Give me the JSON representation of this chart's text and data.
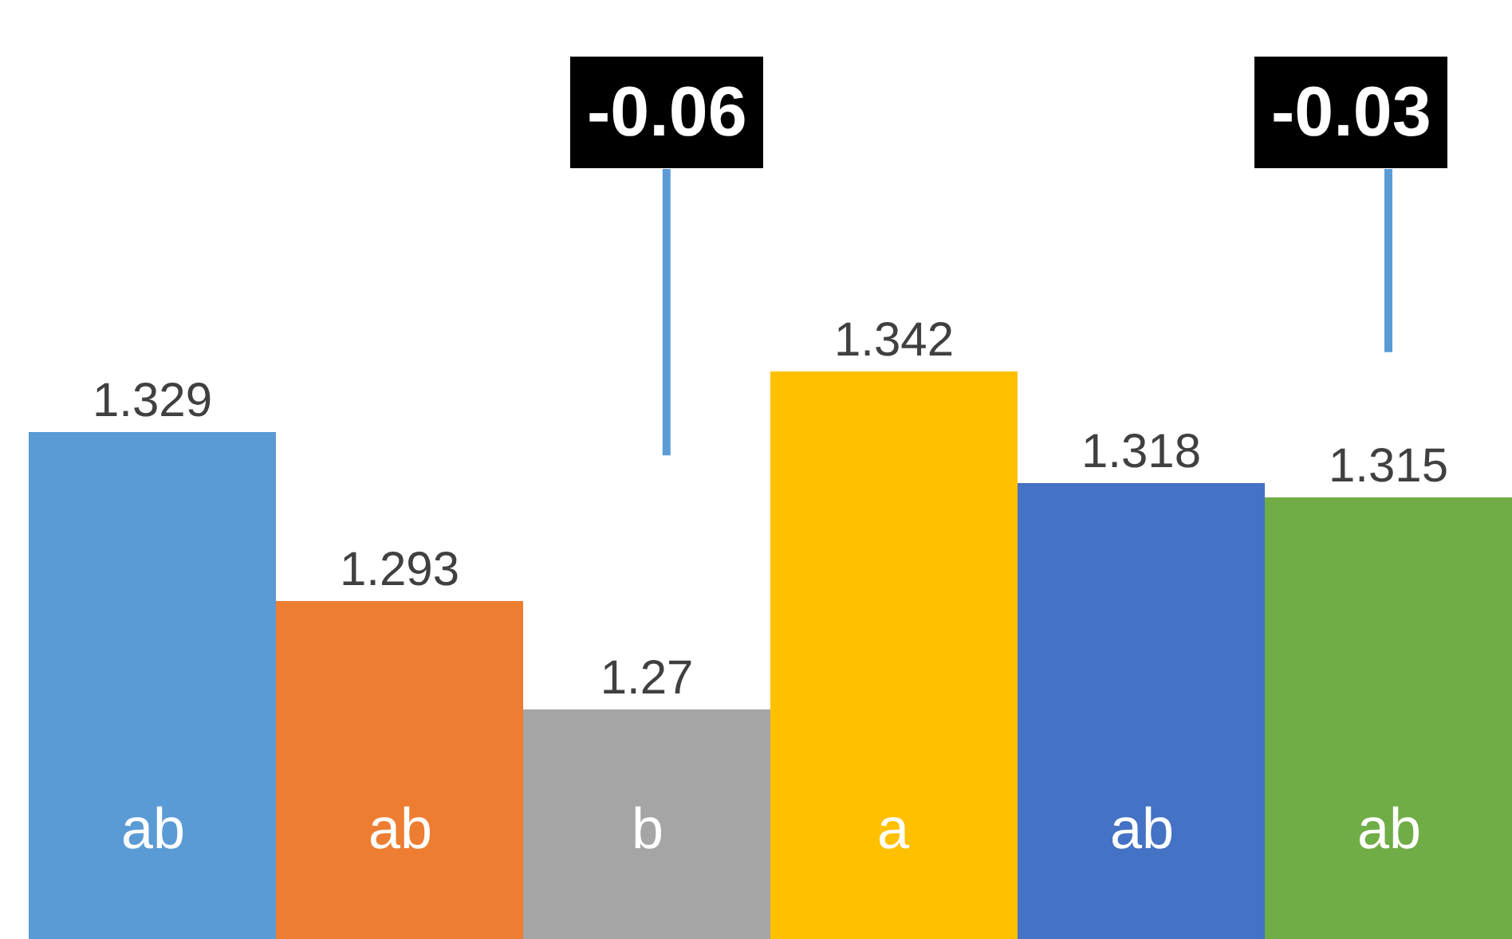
{
  "chart_data": {
    "type": "bar",
    "categories": [
      "ab",
      "ab",
      "b",
      "a",
      "ab",
      "ab"
    ],
    "values": [
      1.329,
      1.293,
      1.27,
      1.342,
      1.318,
      1.315
    ],
    "colors": [
      "#5b9bd5",
      "#ed7d31",
      "#a5a5a5",
      "#ffc000",
      "#4472c4",
      "#70ad47"
    ],
    "ylim": [
      1.221,
      1.421
    ],
    "data_labels": true,
    "tick_labels": false,
    "annotations": [
      "-0.06",
      "-0.03"
    ]
  }
}
